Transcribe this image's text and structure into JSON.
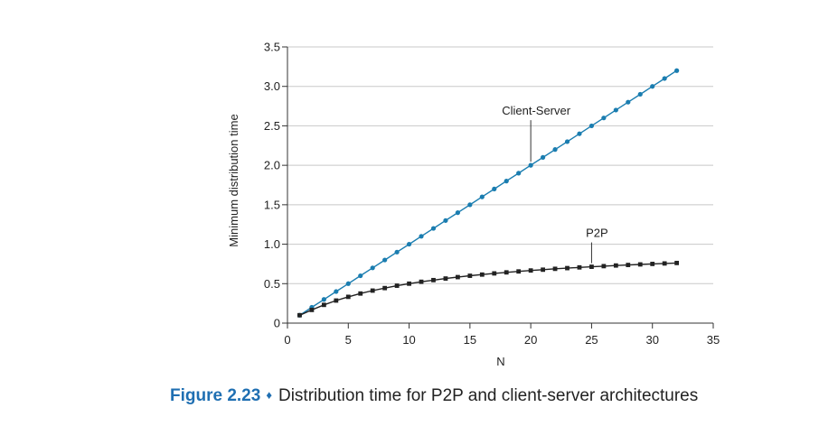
{
  "chart_data": {
    "type": "line",
    "title": "",
    "xlabel": "N",
    "ylabel": "Minimum distribution time",
    "xlim": [
      0,
      35
    ],
    "ylim": [
      0,
      3.5
    ],
    "x_ticks": [
      "0",
      "5",
      "10",
      "15",
      "20",
      "25",
      "30",
      "35"
    ],
    "y_ticks": [
      "0",
      "0.5",
      "1.0",
      "1.5",
      "2.0",
      "2.5",
      "3.0",
      "3.5"
    ],
    "grid": "horizontal",
    "x": [
      1,
      2,
      3,
      4,
      5,
      6,
      7,
      8,
      9,
      10,
      11,
      12,
      13,
      14,
      15,
      16,
      17,
      18,
      19,
      20,
      21,
      22,
      23,
      24,
      25,
      26,
      27,
      28,
      29,
      30,
      31,
      32
    ],
    "series": [
      {
        "name": "Client-Server",
        "color": "#1a7db0",
        "marker": "circle",
        "values": [
          0.1,
          0.2,
          0.3,
          0.4,
          0.5,
          0.6,
          0.7,
          0.8,
          0.9,
          1.0,
          1.1,
          1.2,
          1.3,
          1.4,
          1.5,
          1.6,
          1.7,
          1.8,
          1.9,
          2.0,
          2.1,
          2.2,
          2.3,
          2.4,
          2.5,
          2.6,
          2.7,
          2.8,
          2.9,
          3.0,
          3.1,
          3.2
        ]
      },
      {
        "name": "P2P",
        "color": "#222222",
        "marker": "square",
        "values": [
          0.1,
          0.167,
          0.231,
          0.286,
          0.333,
          0.375,
          0.412,
          0.444,
          0.474,
          0.5,
          0.524,
          0.545,
          0.565,
          0.583,
          0.6,
          0.615,
          0.63,
          0.643,
          0.655,
          0.667,
          0.677,
          0.688,
          0.697,
          0.706,
          0.714,
          0.722,
          0.73,
          0.737,
          0.744,
          0.75,
          0.756,
          0.762
        ]
      }
    ],
    "annotations": [
      {
        "text": "Client-Server",
        "series": "Client-Server",
        "x_point": 20
      },
      {
        "text": "P2P",
        "series": "P2P",
        "x_point": 25
      }
    ]
  },
  "caption": {
    "label": "Figure 2.23",
    "separator": "♦",
    "text": "Distribution time for P2P and client-server architectures"
  }
}
